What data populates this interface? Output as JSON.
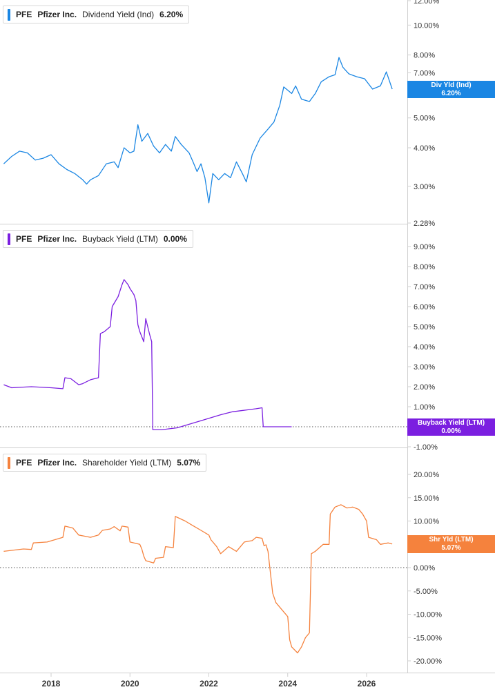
{
  "x_axis_ticks": [
    "2018",
    "2020",
    "2022",
    "2024",
    "2026"
  ],
  "colors": {
    "dividend": "#1a86e3",
    "buyback": "#7b1fe0",
    "shareholder": "#f5823d"
  },
  "panels": [
    {
      "ticker": "PFE",
      "company": "Pfizer Inc.",
      "metric": "Dividend Yield (Ind)",
      "current": "6.20%",
      "badge_line1": "Div Yld (Ind)",
      "badge_line2": "6.20%"
    },
    {
      "ticker": "PFE",
      "company": "Pfizer Inc.",
      "metric": "Buyback Yield (LTM)",
      "current": "0.00%",
      "badge_line1": "Buyback Yield (LTM)",
      "badge_line2": "0.00%"
    },
    {
      "ticker": "PFE",
      "company": "Pfizer Inc.",
      "metric": "Shareholder Yield (LTM)",
      "current": "5.07%",
      "badge_line1": "Shr Yld (LTM)",
      "badge_line2": "5.07%"
    }
  ],
  "chart_data": [
    {
      "type": "line",
      "title": "PFE Pfizer Inc. Dividend Yield (Ind)",
      "y_scale": "log",
      "ylim": [
        2.28,
        12.0
      ],
      "y_ticks": [
        "12.00%",
        "10.00%",
        "8.00%",
        "7.00%",
        "6.00%",
        "5.00%",
        "4.00%",
        "3.00%",
        "2.28%"
      ],
      "y_tick_values": [
        12,
        10,
        8,
        7,
        6,
        5,
        4,
        3,
        2.28
      ],
      "xlim": [
        2016.77,
        2027.0
      ],
      "series": [
        {
          "name": "Div Yld (Ind)",
          "points": [
            [
              2016.8,
              3.55
            ],
            [
              2017.0,
              3.75
            ],
            [
              2017.2,
              3.9
            ],
            [
              2017.4,
              3.85
            ],
            [
              2017.6,
              3.65
            ],
            [
              2017.8,
              3.7
            ],
            [
              2018.0,
              3.8
            ],
            [
              2018.2,
              3.55
            ],
            [
              2018.4,
              3.4
            ],
            [
              2018.6,
              3.3
            ],
            [
              2018.8,
              3.15
            ],
            [
              2018.9,
              3.05
            ],
            [
              2019.0,
              3.15
            ],
            [
              2019.2,
              3.25
            ],
            [
              2019.4,
              3.55
            ],
            [
              2019.6,
              3.6
            ],
            [
              2019.7,
              3.45
            ],
            [
              2019.85,
              4.0
            ],
            [
              2020.0,
              3.85
            ],
            [
              2020.1,
              3.9
            ],
            [
              2020.2,
              4.75
            ],
            [
              2020.3,
              4.2
            ],
            [
              2020.45,
              4.45
            ],
            [
              2020.6,
              4.05
            ],
            [
              2020.75,
              3.85
            ],
            [
              2020.9,
              4.1
            ],
            [
              2021.05,
              3.9
            ],
            [
              2021.15,
              4.35
            ],
            [
              2021.3,
              4.1
            ],
            [
              2021.5,
              3.85
            ],
            [
              2021.6,
              3.6
            ],
            [
              2021.7,
              3.35
            ],
            [
              2021.8,
              3.55
            ],
            [
              2021.9,
              3.2
            ],
            [
              2022.0,
              2.65
            ],
            [
              2022.1,
              3.3
            ],
            [
              2022.25,
              3.15
            ],
            [
              2022.4,
              3.3
            ],
            [
              2022.55,
              3.2
            ],
            [
              2022.7,
              3.6
            ],
            [
              2022.85,
              3.3
            ],
            [
              2022.95,
              3.1
            ],
            [
              2023.1,
              3.8
            ],
            [
              2023.3,
              4.3
            ],
            [
              2023.5,
              4.6
            ],
            [
              2023.65,
              4.85
            ],
            [
              2023.8,
              5.5
            ],
            [
              2023.9,
              6.3
            ],
            [
              2024.0,
              6.15
            ],
            [
              2024.1,
              6.0
            ],
            [
              2024.2,
              6.35
            ],
            [
              2024.35,
              5.75
            ],
            [
              2024.55,
              5.65
            ],
            [
              2024.7,
              6.0
            ],
            [
              2024.85,
              6.55
            ],
            [
              2025.05,
              6.8
            ],
            [
              2025.2,
              6.9
            ],
            [
              2025.3,
              7.85
            ],
            [
              2025.4,
              7.3
            ],
            [
              2025.55,
              6.95
            ],
            [
              2025.75,
              6.8
            ],
            [
              2025.95,
              6.7
            ],
            [
              2026.15,
              6.2
            ],
            [
              2026.35,
              6.35
            ],
            [
              2026.5,
              7.05
            ],
            [
              2026.65,
              6.2
            ]
          ]
        }
      ]
    },
    {
      "type": "line",
      "title": "PFE Pfizer Inc. Buyback Yield (LTM)",
      "ylim": [
        -1.0,
        9.0
      ],
      "y_ticks": [
        "9.00%",
        "8.00%",
        "7.00%",
        "6.00%",
        "5.00%",
        "4.00%",
        "3.00%",
        "2.00%",
        "1.00%",
        "-1.00%"
      ],
      "y_tick_values": [
        9,
        8,
        7,
        6,
        5,
        4,
        3,
        2,
        1,
        -1
      ],
      "zero_line": true,
      "xlim": [
        2016.77,
        2027.0
      ],
      "series": [
        {
          "name": "Buyback Yield (LTM)",
          "points": [
            [
              2016.8,
              2.1
            ],
            [
              2017.0,
              1.95
            ],
            [
              2017.5,
              2.0
            ],
            [
              2018.0,
              1.95
            ],
            [
              2018.3,
              1.9
            ],
            [
              2018.35,
              2.45
            ],
            [
              2018.5,
              2.4
            ],
            [
              2018.7,
              2.1
            ],
            [
              2018.8,
              2.15
            ],
            [
              2019.0,
              2.35
            ],
            [
              2019.2,
              2.45
            ],
            [
              2019.25,
              4.65
            ],
            [
              2019.35,
              4.75
            ],
            [
              2019.5,
              5.0
            ],
            [
              2019.55,
              6.0
            ],
            [
              2019.7,
              6.5
            ],
            [
              2019.8,
              7.1
            ],
            [
              2019.85,
              7.35
            ],
            [
              2019.95,
              7.1
            ],
            [
              2020.0,
              6.9
            ],
            [
              2020.1,
              6.6
            ],
            [
              2020.15,
              6.3
            ],
            [
              2020.2,
              5.1
            ],
            [
              2020.25,
              4.75
            ],
            [
              2020.35,
              4.25
            ],
            [
              2020.4,
              5.4
            ],
            [
              2020.5,
              4.6
            ],
            [
              2020.55,
              4.25
            ],
            [
              2020.58,
              -0.15
            ],
            [
              2020.8,
              -0.15
            ],
            [
              2021.0,
              -0.1
            ],
            [
              2021.2,
              -0.05
            ],
            [
              2021.8,
              0.3
            ],
            [
              2022.3,
              0.6
            ],
            [
              2022.4,
              0.65
            ],
            [
              2022.6,
              0.75
            ],
            [
              2022.8,
              0.8
            ],
            [
              2023.0,
              0.85
            ],
            [
              2023.2,
              0.9
            ],
            [
              2023.35,
              0.95
            ],
            [
              2023.38,
              0.0
            ],
            [
              2024.1,
              0.0
            ]
          ]
        }
      ]
    },
    {
      "type": "line",
      "title": "PFE Pfizer Inc. Shareholder Yield (LTM)",
      "ylim": [
        -20.0,
        20.0
      ],
      "y_ticks": [
        "20.00%",
        "15.00%",
        "10.00%",
        "5.00%",
        "0.00%",
        "-5.00%",
        "-10.00%",
        "-15.00%",
        "-20.00%"
      ],
      "y_tick_values": [
        20,
        15,
        10,
        5,
        0,
        -5,
        -10,
        -15,
        -20
      ],
      "zero_line": true,
      "xlim": [
        2016.77,
        2027.0
      ],
      "series": [
        {
          "name": "Shr Yld (LTM)",
          "points": [
            [
              2016.8,
              3.5
            ],
            [
              2017.0,
              3.7
            ],
            [
              2017.3,
              4.0
            ],
            [
              2017.5,
              3.9
            ],
            [
              2017.55,
              5.3
            ],
            [
              2017.9,
              5.5
            ],
            [
              2018.1,
              6.0
            ],
            [
              2018.3,
              6.5
            ],
            [
              2018.35,
              8.9
            ],
            [
              2018.55,
              8.5
            ],
            [
              2018.7,
              7.0
            ],
            [
              2019.0,
              6.5
            ],
            [
              2019.2,
              7.0
            ],
            [
              2019.3,
              8.0
            ],
            [
              2019.5,
              8.3
            ],
            [
              2019.6,
              8.8
            ],
            [
              2019.75,
              7.9
            ],
            [
              2019.8,
              8.9
            ],
            [
              2019.95,
              8.7
            ],
            [
              2020.0,
              5.5
            ],
            [
              2020.25,
              5.0
            ],
            [
              2020.3,
              4.0
            ],
            [
              2020.35,
              2.5
            ],
            [
              2020.4,
              1.5
            ],
            [
              2020.6,
              1.0
            ],
            [
              2020.65,
              2.0
            ],
            [
              2020.85,
              2.2
            ],
            [
              2020.9,
              4.5
            ],
            [
              2021.1,
              4.3
            ],
            [
              2021.15,
              11.0
            ],
            [
              2021.4,
              10.0
            ],
            [
              2021.6,
              9.0
            ],
            [
              2021.8,
              8.0
            ],
            [
              2022.0,
              7.0
            ],
            [
              2022.05,
              6.0
            ],
            [
              2022.2,
              4.5
            ],
            [
              2022.3,
              3.0
            ],
            [
              2022.5,
              4.5
            ],
            [
              2022.7,
              3.5
            ],
            [
              2022.9,
              5.5
            ],
            [
              2023.1,
              5.8
            ],
            [
              2023.2,
              6.5
            ],
            [
              2023.35,
              6.3
            ],
            [
              2023.4,
              4.7
            ],
            [
              2023.45,
              4.9
            ],
            [
              2023.5,
              3.5
            ],
            [
              2023.62,
              -5.5
            ],
            [
              2023.7,
              -7.5
            ],
            [
              2023.85,
              -9.0
            ],
            [
              2024.0,
              -10.5
            ],
            [
              2024.05,
              -15.5
            ],
            [
              2024.1,
              -17.0
            ],
            [
              2024.25,
              -18.3
            ],
            [
              2024.35,
              -17.0
            ],
            [
              2024.45,
              -15.0
            ],
            [
              2024.55,
              -14.0
            ],
            [
              2024.6,
              3.0
            ],
            [
              2024.7,
              3.5
            ],
            [
              2024.9,
              5.0
            ],
            [
              2025.05,
              5.0
            ],
            [
              2025.08,
              11.5
            ],
            [
              2025.2,
              13.0
            ],
            [
              2025.35,
              13.5
            ],
            [
              2025.5,
              12.8
            ],
            [
              2025.65,
              13.0
            ],
            [
              2025.8,
              12.5
            ],
            [
              2025.9,
              11.5
            ],
            [
              2026.0,
              10.0
            ],
            [
              2026.05,
              6.5
            ],
            [
              2026.25,
              6.0
            ],
            [
              2026.35,
              5.0
            ],
            [
              2026.55,
              5.3
            ],
            [
              2026.65,
              5.07
            ]
          ]
        }
      ]
    }
  ]
}
